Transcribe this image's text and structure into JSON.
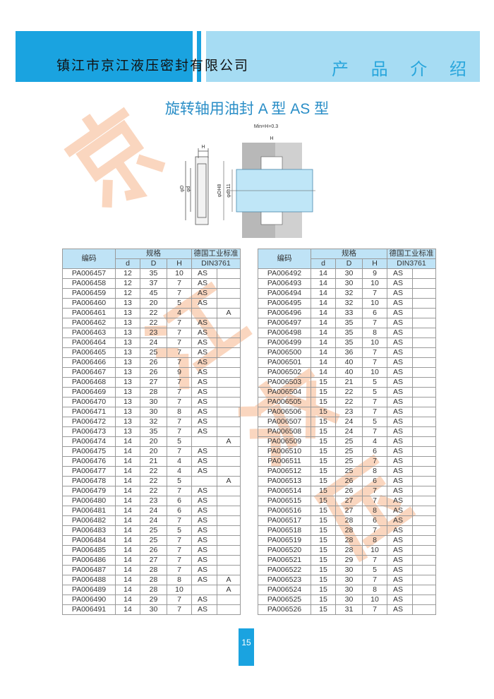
{
  "header": {
    "company": "镇江市京江液压密封有限公司",
    "section": "产 品 介 绍",
    "colors": {
      "dark": "#1aa3e0",
      "light": "#a6dcf3"
    }
  },
  "title": "旋转轴用油封 A 型   AS 型",
  "diagram": {
    "label_min": "Min=H+0.3",
    "label_h": "H",
    "label_D": "φD",
    "label_d": "φd",
    "label_DH8": "φDH8",
    "label_dh11": "φdh11"
  },
  "watermark": "京江液压",
  "table_headers": {
    "code": "编码",
    "spec": "规格",
    "std": "德国工业标准",
    "din": "DIN3761",
    "d": "d",
    "D": "D",
    "H": "H"
  },
  "left_rows": [
    [
      "PA006457",
      "12",
      "35",
      "10",
      "AS",
      ""
    ],
    [
      "PA006458",
      "12",
      "37",
      "7",
      "AS",
      ""
    ],
    [
      "PA006459",
      "12",
      "45",
      "7",
      "AS",
      ""
    ],
    [
      "PA006460",
      "13",
      "20",
      "5",
      "AS",
      ""
    ],
    [
      "PA006461",
      "13",
      "22",
      "4",
      "",
      "A"
    ],
    [
      "PA006462",
      "13",
      "22",
      "7",
      "AS",
      ""
    ],
    [
      "PA006463",
      "13",
      "23",
      "7",
      "AS",
      ""
    ],
    [
      "PA006464",
      "13",
      "24",
      "7",
      "AS",
      ""
    ],
    [
      "PA006465",
      "13",
      "25",
      "7",
      "AS",
      ""
    ],
    [
      "PA006466",
      "13",
      "26",
      "7",
      "AS",
      ""
    ],
    [
      "PA006467",
      "13",
      "26",
      "9",
      "AS",
      ""
    ],
    [
      "PA006468",
      "13",
      "27",
      "7",
      "AS",
      ""
    ],
    [
      "PA006469",
      "13",
      "28",
      "7",
      "AS",
      ""
    ],
    [
      "PA006470",
      "13",
      "30",
      "7",
      "AS",
      ""
    ],
    [
      "PA006471",
      "13",
      "30",
      "8",
      "AS",
      ""
    ],
    [
      "PA006472",
      "13",
      "32",
      "7",
      "AS",
      ""
    ],
    [
      "PA006473",
      "13",
      "35",
      "7",
      "AS",
      ""
    ],
    [
      "PA006474",
      "14",
      "20",
      "5",
      "",
      "A"
    ],
    [
      "PA006475",
      "14",
      "20",
      "7",
      "AS",
      ""
    ],
    [
      "PA006476",
      "14",
      "21",
      "4",
      "AS",
      ""
    ],
    [
      "PA006477",
      "14",
      "22",
      "4",
      "AS",
      ""
    ],
    [
      "PA006478",
      "14",
      "22",
      "5",
      "",
      "A"
    ],
    [
      "PA006479",
      "14",
      "22",
      "7",
      "AS",
      ""
    ],
    [
      "PA006480",
      "14",
      "23",
      "6",
      "AS",
      ""
    ],
    [
      "PA006481",
      "14",
      "24",
      "6",
      "AS",
      ""
    ],
    [
      "PA006482",
      "14",
      "24",
      "7",
      "AS",
      ""
    ],
    [
      "PA006483",
      "14",
      "25",
      "5",
      "AS",
      ""
    ],
    [
      "PA006484",
      "14",
      "25",
      "7",
      "AS",
      ""
    ],
    [
      "PA006485",
      "14",
      "26",
      "7",
      "AS",
      ""
    ],
    [
      "PA006486",
      "14",
      "27",
      "7",
      "AS",
      ""
    ],
    [
      "PA006487",
      "14",
      "28",
      "7",
      "AS",
      ""
    ],
    [
      "PA006488",
      "14",
      "28",
      "8",
      "AS",
      "A"
    ],
    [
      "PA006489",
      "14",
      "28",
      "10",
      "",
      "A"
    ],
    [
      "PA006490",
      "14",
      "29",
      "7",
      "AS",
      ""
    ],
    [
      "PA006491",
      "14",
      "30",
      "7",
      "AS",
      ""
    ]
  ],
  "right_rows": [
    [
      "PA006492",
      "14",
      "30",
      "9",
      "AS",
      ""
    ],
    [
      "PA006493",
      "14",
      "30",
      "10",
      "AS",
      ""
    ],
    [
      "PA006494",
      "14",
      "32",
      "7",
      "AS",
      ""
    ],
    [
      "PA006495",
      "14",
      "32",
      "10",
      "AS",
      ""
    ],
    [
      "PA006496",
      "14",
      "33",
      "6",
      "AS",
      ""
    ],
    [
      "PA006497",
      "14",
      "35",
      "7",
      "AS",
      ""
    ],
    [
      "PA006498",
      "14",
      "35",
      "8",
      "AS",
      ""
    ],
    [
      "PA006499",
      "14",
      "35",
      "10",
      "AS",
      ""
    ],
    [
      "PA006500",
      "14",
      "36",
      "7",
      "AS",
      ""
    ],
    [
      "PA006501",
      "14",
      "40",
      "7",
      "AS",
      ""
    ],
    [
      "PA006502",
      "14",
      "40",
      "10",
      "AS",
      ""
    ],
    [
      "PA006503",
      "15",
      "21",
      "5",
      "AS",
      ""
    ],
    [
      "PA006504",
      "15",
      "22",
      "5",
      "AS",
      ""
    ],
    [
      "PA006505",
      "15",
      "22",
      "7",
      "AS",
      ""
    ],
    [
      "PA006506",
      "15",
      "23",
      "7",
      "AS",
      ""
    ],
    [
      "PA006507",
      "15",
      "24",
      "5",
      "AS",
      ""
    ],
    [
      "PA006508",
      "15",
      "24",
      "7",
      "AS",
      ""
    ],
    [
      "PA006509",
      "15",
      "25",
      "4",
      "AS",
      ""
    ],
    [
      "PA006510",
      "15",
      "25",
      "6",
      "AS",
      ""
    ],
    [
      "PA006511",
      "15",
      "25",
      "7",
      "AS",
      ""
    ],
    [
      "PA006512",
      "15",
      "25",
      "8",
      "AS",
      ""
    ],
    [
      "PA006513",
      "15",
      "26",
      "6",
      "AS",
      ""
    ],
    [
      "PA006514",
      "15",
      "26",
      "7",
      "AS",
      ""
    ],
    [
      "PA006515",
      "15",
      "27",
      "7",
      "AS",
      ""
    ],
    [
      "PA006516",
      "15",
      "27",
      "8",
      "AS",
      ""
    ],
    [
      "PA006517",
      "15",
      "28",
      "6",
      "AS",
      ""
    ],
    [
      "PA006518",
      "15",
      "28",
      "7",
      "AS",
      ""
    ],
    [
      "PA006519",
      "15",
      "28",
      "8",
      "AS",
      ""
    ],
    [
      "PA006520",
      "15",
      "28",
      "10",
      "AS",
      ""
    ],
    [
      "PA006521",
      "15",
      "29",
      "7",
      "AS",
      ""
    ],
    [
      "PA006522",
      "15",
      "30",
      "5",
      "AS",
      ""
    ],
    [
      "PA006523",
      "15",
      "30",
      "7",
      "AS",
      ""
    ],
    [
      "PA006524",
      "15",
      "30",
      "8",
      "AS",
      ""
    ],
    [
      "PA006525",
      "15",
      "30",
      "10",
      "AS",
      ""
    ],
    [
      "PA006526",
      "15",
      "31",
      "7",
      "AS",
      ""
    ]
  ],
  "page_number": "15"
}
